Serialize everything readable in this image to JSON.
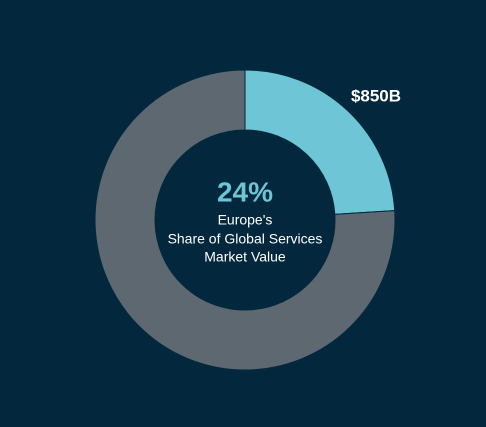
{
  "chart_data": {
    "type": "donut",
    "values": [
      24,
      76
    ],
    "value_labels": [
      "24%",
      null
    ],
    "colors": [
      "#6dc5d5",
      "#5e6870"
    ],
    "segment_annotation": "$850B",
    "center_text": [
      "Europe's",
      "Share of Global Services",
      "Market Value"
    ]
  }
}
